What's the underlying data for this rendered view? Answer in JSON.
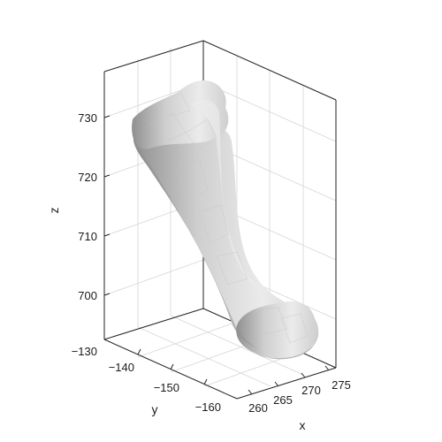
{
  "chart_data": {
    "type": "3d-surface",
    "title": "",
    "xlabel": "x",
    "ylabel": "y",
    "zlabel": "z",
    "x_ticks": [
      "260",
      "265",
      "270",
      "275"
    ],
    "y_ticks": [
      "−130",
      "−140",
      "−150",
      "−160"
    ],
    "z_ticks": [
      "700",
      "710",
      "720",
      "730"
    ],
    "grid": true,
    "surface_colors": {
      "light": "#ebebeb",
      "mid": "#cfcfcf",
      "shadow": "#8f8f8f"
    }
  }
}
